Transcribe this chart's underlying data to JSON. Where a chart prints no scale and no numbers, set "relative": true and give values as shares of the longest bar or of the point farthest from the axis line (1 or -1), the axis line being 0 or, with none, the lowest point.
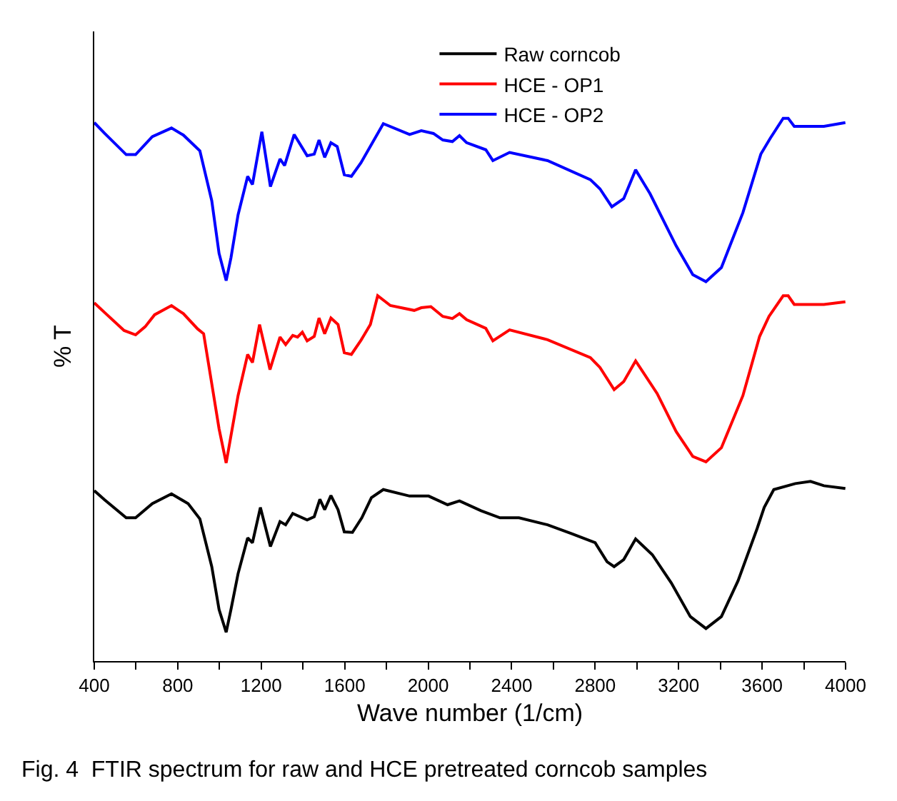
{
  "chart_data": {
    "type": "line",
    "relative": true,
    "xlabel": "Wave number (1/cm)",
    "ylabel": "% T",
    "legend": "top right",
    "marker": "none",
    "line_style": "solid",
    "xlim": [
      400,
      4000
    ],
    "xticks": [
      400,
      {
        "value": 600,
        "label": null
      },
      800,
      {
        "value": 1000,
        "label": null
      },
      1200,
      {
        "value": 1400,
        "label": null
      },
      1600,
      {
        "value": 1800,
        "label": null
      },
      2000,
      {
        "value": 2200,
        "label": null
      },
      2400,
      {
        "value": 2600,
        "label": null
      },
      2800,
      {
        "value": 3000,
        "label": null
      },
      3200,
      {
        "value": 3400,
        "label": null
      },
      3600,
      {
        "value": 3800,
        "label": null
      },
      4000
    ],
    "annotations": [
      "Fig. 4  FTIR spectrum for raw and HCE pretreated corncob samples"
    ],
    "series": [
      {
        "name": "Raw corncob",
        "color": "#000000",
        "x": [
          400,
          450,
          553,
          598,
          678,
          770,
          850,
          906,
          963,
          998,
          1032,
          1055,
          1089,
          1135,
          1158,
          1196,
          1244,
          1290,
          1317,
          1351,
          1420,
          1454,
          1481,
          1504,
          1534,
          1568,
          1598,
          1637,
          1682,
          1728,
          1785,
          1911,
          2002,
          2093,
          2150,
          2253,
          2344,
          2435,
          2572,
          2686,
          2800,
          2857,
          2891,
          2937,
          2994,
          3074,
          3165,
          3256,
          3331,
          3405,
          3485,
          3576,
          3610,
          3656,
          3759,
          3832,
          3896,
          3999
        ],
        "values": [
          0.314,
          0.297,
          0.264,
          0.264,
          0.29,
          0.308,
          0.29,
          0.262,
          0.174,
          0.095,
          0.053,
          0.095,
          0.161,
          0.227,
          0.218,
          0.283,
          0.211,
          0.257,
          0.251,
          0.272,
          0.26,
          0.266,
          0.298,
          0.279,
          0.305,
          0.279,
          0.238,
          0.237,
          0.264,
          0.301,
          0.316,
          0.304,
          0.304,
          0.288,
          0.295,
          0.277,
          0.264,
          0.264,
          0.251,
          0.235,
          0.218,
          0.183,
          0.174,
          0.187,
          0.225,
          0.196,
          0.144,
          0.082,
          0.06,
          0.082,
          0.148,
          0.244,
          0.283,
          0.316,
          0.327,
          0.331,
          0.323,
          0.318
        ]
      },
      {
        "name": "HCE - OP1",
        "color": "#ff0000",
        "x": [
          400,
          450,
          543,
          598,
          644,
          689,
          770,
          827,
          895,
          924,
          963,
          998,
          1032,
          1055,
          1089,
          1135,
          1158,
          1192,
          1242,
          1290,
          1317,
          1351,
          1374,
          1397,
          1420,
          1454,
          1477,
          1504,
          1534,
          1568,
          1598,
          1632,
          1678,
          1723,
          1758,
          1819,
          1933,
          1967,
          2013,
          2070,
          2116,
          2150,
          2184,
          2276,
          2310,
          2390,
          2572,
          2777,
          2823,
          2891,
          2937,
          2994,
          3097,
          3188,
          3268,
          3331,
          3405,
          3508,
          3588,
          3633,
          3701,
          3725,
          3754,
          3896,
          3999
        ],
        "values": [
          0.66,
          0.642,
          0.609,
          0.601,
          0.616,
          0.638,
          0.655,
          0.64,
          0.612,
          0.603,
          0.511,
          0.428,
          0.365,
          0.415,
          0.489,
          0.565,
          0.55,
          0.62,
          0.537,
          0.597,
          0.583,
          0.6,
          0.597,
          0.606,
          0.59,
          0.598,
          0.632,
          0.603,
          0.632,
          0.62,
          0.568,
          0.565,
          0.591,
          0.62,
          0.673,
          0.655,
          0.646,
          0.651,
          0.653,
          0.635,
          0.631,
          0.64,
          0.629,
          0.613,
          0.59,
          0.61,
          0.592,
          0.559,
          0.541,
          0.5,
          0.515,
          0.553,
          0.493,
          0.423,
          0.377,
          0.367,
          0.393,
          0.489,
          0.598,
          0.635,
          0.673,
          0.673,
          0.657,
          0.657,
          0.662
        ]
      },
      {
        "name": "HCE - OP2",
        "color": "#0000ff",
        "x": [
          400,
          450,
          553,
          598,
          678,
          770,
          827,
          906,
          963,
          998,
          1032,
          1055,
          1089,
          1135,
          1158,
          1203,
          1244,
          1290,
          1312,
          1358,
          1420,
          1454,
          1477,
          1504,
          1534,
          1564,
          1598,
          1632,
          1678,
          1785,
          1911,
          1967,
          2025,
          2070,
          2116,
          2150,
          2184,
          2276,
          2310,
          2390,
          2572,
          2777,
          2823,
          2880,
          2937,
          2994,
          3063,
          3188,
          3268,
          3331,
          3405,
          3508,
          3594,
          3639,
          3701,
          3725,
          3754,
          3896,
          3999
        ],
        "values": [
          0.992,
          0.972,
          0.933,
          0.933,
          0.966,
          0.982,
          0.969,
          0.94,
          0.848,
          0.751,
          0.701,
          0.743,
          0.822,
          0.893,
          0.878,
          0.975,
          0.874,
          0.925,
          0.913,
          0.97,
          0.931,
          0.934,
          0.96,
          0.928,
          0.955,
          0.948,
          0.896,
          0.893,
          0.918,
          0.99,
          0.97,
          0.977,
          0.972,
          0.96,
          0.957,
          0.968,
          0.955,
          0.942,
          0.922,
          0.937,
          0.922,
          0.887,
          0.87,
          0.837,
          0.852,
          0.905,
          0.861,
          0.765,
          0.712,
          0.699,
          0.725,
          0.826,
          0.934,
          0.963,
          1.0,
          1.0,
          0.985,
          0.985,
          0.992
        ]
      }
    ]
  }
}
